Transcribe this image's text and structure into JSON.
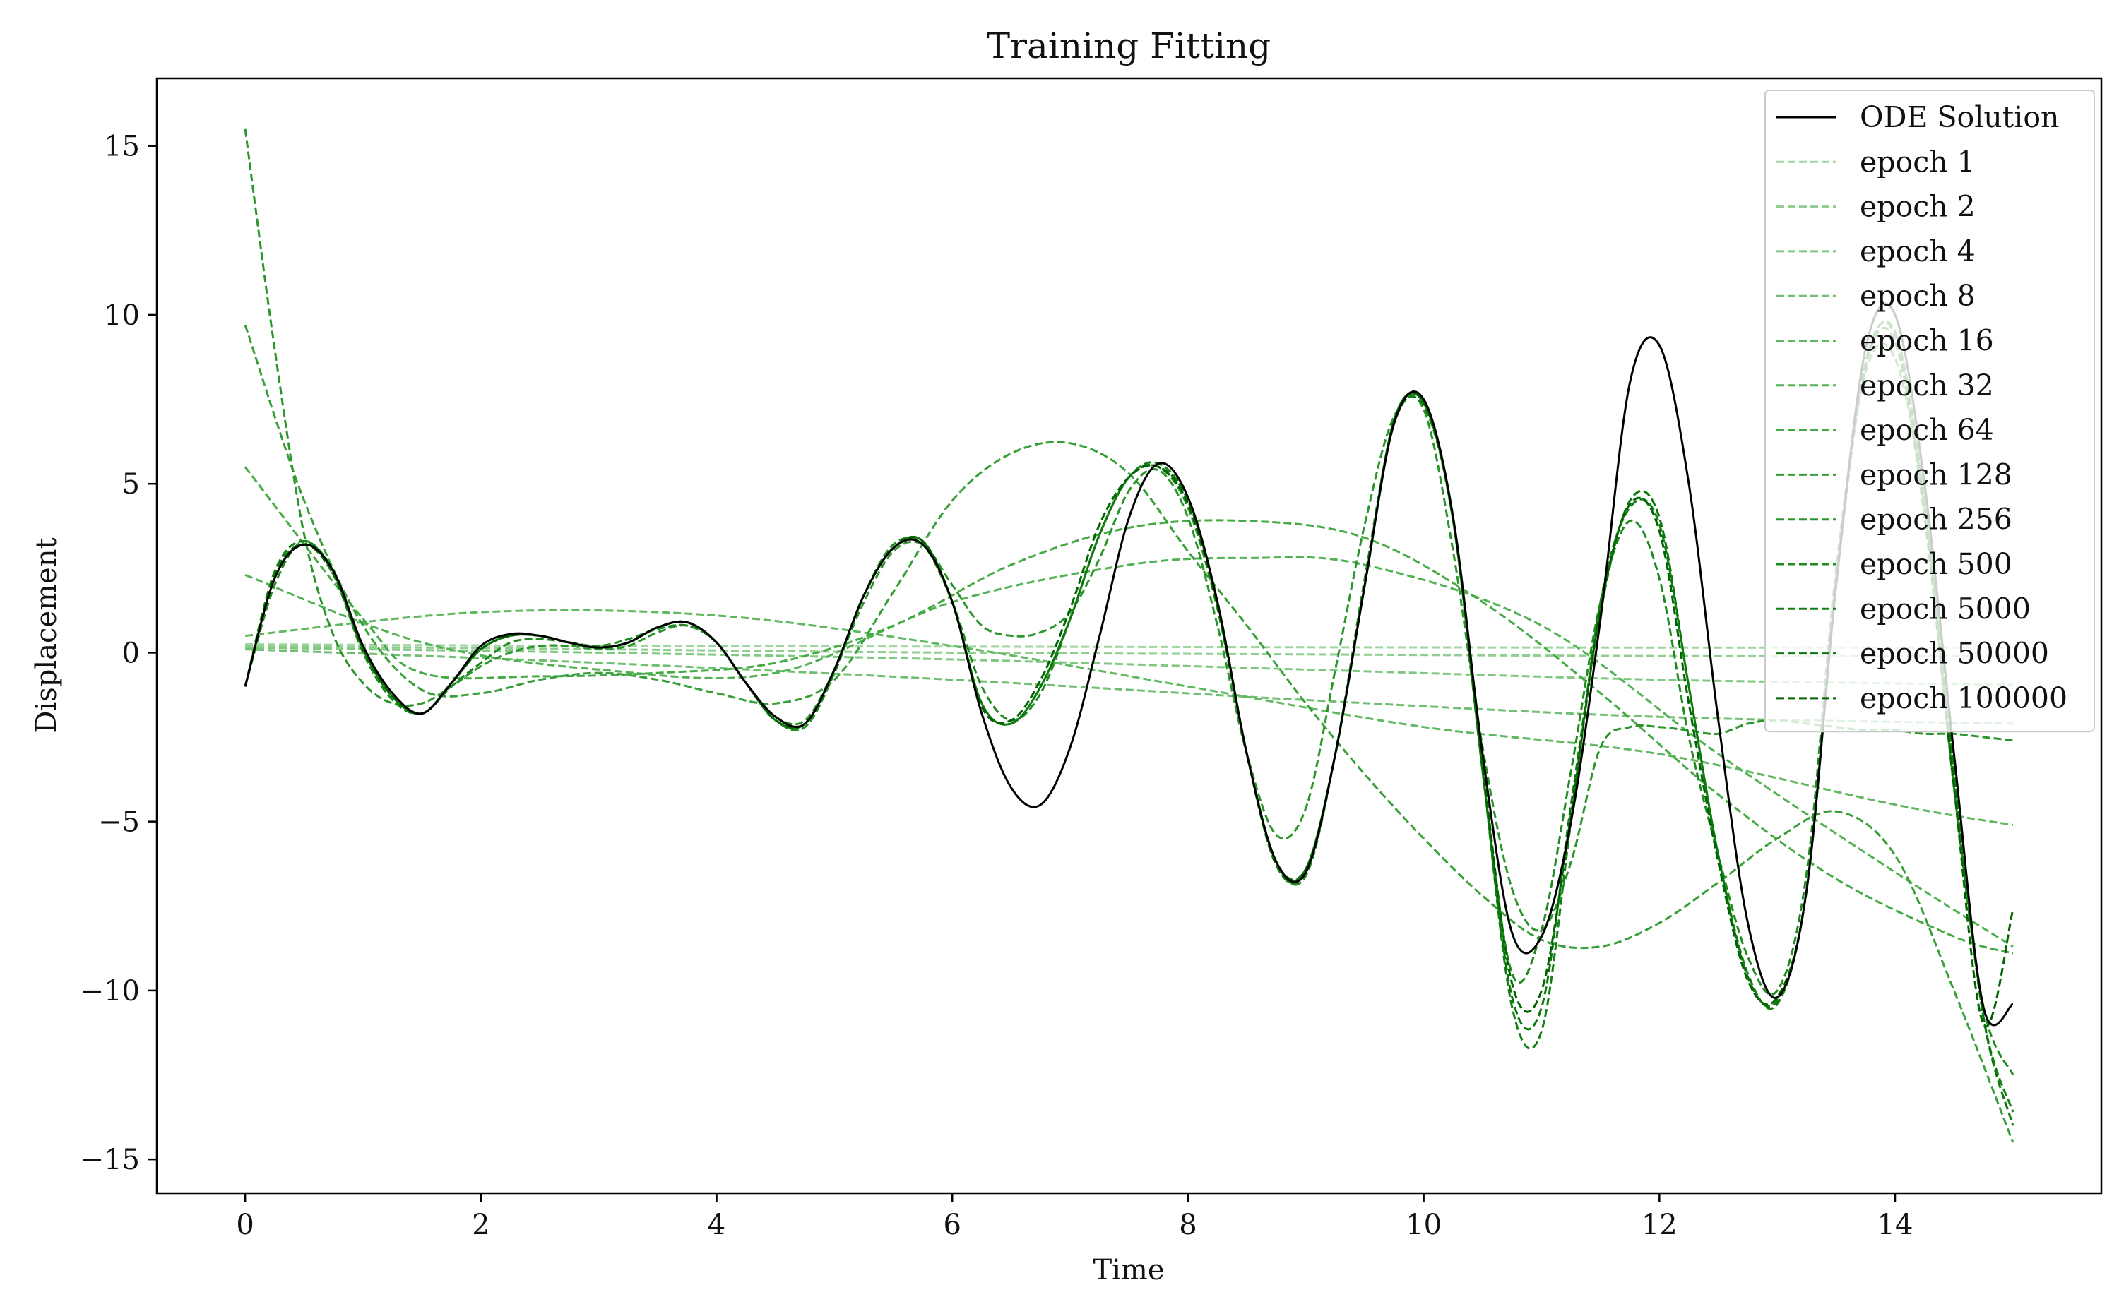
{
  "chart_data": {
    "type": "line",
    "title": "Training Fitting",
    "xlabel": "Time",
    "ylabel": "Displacement",
    "xlim": [
      -0.75,
      15.75
    ],
    "ylim": [
      -16,
      17
    ],
    "xticks": [
      0,
      2,
      4,
      6,
      8,
      10,
      12,
      14
    ],
    "xtick_labels": [
      "0",
      "2",
      "4",
      "6",
      "8",
      "10",
      "12",
      "14"
    ],
    "yticks": [
      -15,
      -10,
      -5,
      0,
      5,
      10,
      15
    ],
    "ytick_labels": [
      "−15",
      "−10",
      "−5",
      "0",
      "5",
      "10",
      "15"
    ],
    "grid": false,
    "legend_position": "top-right",
    "series": [
      {
        "name": "ODE Solution",
        "color": "#000000",
        "style": "solid",
        "x": [
          0,
          0.25,
          0.5,
          0.75,
          1,
          1.25,
          1.5,
          1.75,
          2,
          2.25,
          2.5,
          2.75,
          3,
          3.25,
          3.5,
          3.75,
          4,
          4.25,
          4.5,
          4.75,
          5,
          5.25,
          5.5,
          5.75,
          6,
          6.25,
          6.5,
          6.75,
          7,
          7.25,
          7.5,
          7.75,
          8,
          8.25,
          8.5,
          8.75,
          9,
          9.25,
          9.5,
          9.75,
          10,
          10.25,
          10.5,
          10.75,
          11,
          11.25,
          11.5,
          11.75,
          12,
          12.25,
          12.5,
          12.75,
          13,
          13.25,
          13.5,
          13.75,
          14,
          14.25,
          14.5,
          14.75,
          15
        ],
        "y": [
          -1.0,
          2.2,
          3.2,
          2.4,
          0.2,
          -1.2,
          -1.8,
          -0.9,
          0.2,
          0.55,
          0.5,
          0.3,
          0.15,
          0.3,
          0.75,
          0.9,
          0.3,
          -0.9,
          -1.9,
          -2.1,
          -0.5,
          1.7,
          3.1,
          3.2,
          1.5,
          -1.8,
          -4.0,
          -4.5,
          -2.8,
          0.5,
          4.0,
          5.6,
          4.6,
          1.5,
          -3.0,
          -6.2,
          -6.5,
          -3.0,
          2.0,
          6.8,
          7.5,
          4.0,
          -3.0,
          -8.3,
          -8.4,
          -5.0,
          1.0,
          8.0,
          9.1,
          5.0,
          -2.0,
          -8.0,
          -10.2,
          -7.0,
          2.0,
          9.0,
          10.0,
          5.0,
          -3.0,
          -10.5,
          -10.4
        ]
      },
      {
        "name": "epoch 1",
        "color": "#9fd59f",
        "style": "dashed",
        "x": [
          0,
          3,
          6,
          9,
          12,
          15
        ],
        "y": [
          0.25,
          0.2,
          0.18,
          0.16,
          0.15,
          0.15
        ]
      },
      {
        "name": "epoch 2",
        "color": "#8fce8f",
        "style": "dashed",
        "x": [
          0,
          3,
          6,
          9,
          12,
          15
        ],
        "y": [
          0.2,
          0.1,
          0.0,
          -0.05,
          -0.1,
          -0.1
        ]
      },
      {
        "name": "epoch 4",
        "color": "#80c780",
        "style": "dashed",
        "x": [
          0,
          3,
          6,
          9,
          12,
          15
        ],
        "y": [
          0.15,
          0.0,
          -0.2,
          -0.5,
          -0.8,
          -0.95
        ]
      },
      {
        "name": "epoch 8",
        "color": "#70bf70",
        "style": "dashed",
        "x": [
          0,
          3,
          6,
          9,
          12,
          15
        ],
        "y": [
          0.1,
          -0.3,
          -0.8,
          -1.4,
          -1.9,
          -2.1
        ]
      },
      {
        "name": "epoch 16",
        "color": "#60b860",
        "style": "dashed",
        "x": [
          0,
          2,
          4,
          6,
          8,
          10,
          12,
          14,
          15
        ],
        "y": [
          0.5,
          1.2,
          1.1,
          0.2,
          -1.0,
          -2.2,
          -3.0,
          -4.5,
          -5.1
        ]
      },
      {
        "name": "epoch 32",
        "color": "#52b152",
        "style": "dashed",
        "x": [
          0,
          1.5,
          3,
          4.5,
          6,
          7.5,
          8.5,
          9.5,
          11,
          12.5,
          14,
          15
        ],
        "y": [
          2.3,
          0.3,
          -0.5,
          -0.6,
          1.5,
          2.6,
          2.8,
          2.6,
          0.8,
          -3.0,
          -6.5,
          -8.7
        ]
      },
      {
        "name": "epoch 64",
        "color": "#44aa44",
        "style": "dashed",
        "x": [
          0,
          1,
          1.5,
          2.5,
          3.5,
          4.5,
          5.5,
          6.5,
          7.5,
          8.5,
          9.5,
          10.5,
          11.5,
          12.5,
          13.5,
          14.5,
          15
        ],
        "y": [
          5.5,
          1.0,
          -0.6,
          -0.7,
          -0.6,
          -0.3,
          0.8,
          2.6,
          3.7,
          3.9,
          3.4,
          1.5,
          -1.2,
          -4.2,
          -6.7,
          -8.4,
          -8.9
        ]
      },
      {
        "name": "epoch 128",
        "color": "#379f37",
        "style": "dashed",
        "x": [
          0,
          0.5,
          1,
          1.5,
          2,
          2.5,
          3,
          3.5,
          4,
          4.5,
          5,
          5.5,
          6,
          6.5,
          7,
          7.5,
          8,
          8.5,
          9,
          9.5,
          10,
          10.5,
          11,
          11.5,
          12,
          12.5,
          13,
          13.5,
          14,
          14.5,
          15
        ],
        "y": [
          9.7,
          4.5,
          0.8,
          -1.1,
          -1.2,
          -0.8,
          -0.6,
          -0.8,
          -1.2,
          -1.5,
          -0.8,
          1.8,
          4.5,
          5.9,
          6.2,
          5.3,
          3.0,
          0.8,
          -1.5,
          -3.6,
          -5.5,
          -7.2,
          -8.5,
          -8.7,
          -8.0,
          -6.8,
          -5.5,
          -4.7,
          -6.0,
          -10.0,
          -14.5
        ]
      },
      {
        "name": "epoch 256",
        "color": "#2a952a",
        "style": "dashed",
        "x": [
          0,
          0.25,
          0.5,
          0.75,
          1,
          1.25,
          1.5,
          1.75,
          2,
          2.25,
          2.5,
          2.75,
          3,
          3.25,
          3.5,
          3.75,
          4,
          4.25,
          4.5,
          4.75,
          5,
          5.25,
          5.5,
          5.75,
          6,
          6.25,
          6.5,
          6.75,
          7,
          7.25,
          7.5,
          7.75,
          8,
          8.25,
          8.5,
          8.75,
          9,
          9.25,
          9.5,
          9.75,
          10,
          10.25,
          10.5,
          10.75,
          11,
          11.25,
          11.5,
          11.75,
          12,
          12.25,
          12.5,
          12.75,
          13,
          13.25,
          13.5,
          13.75,
          14,
          14.25,
          14.5,
          14.75,
          15
        ],
        "y": [
          15.5,
          9.0,
          3.5,
          0.5,
          -0.9,
          -1.5,
          -1.5,
          -1.0,
          -0.4,
          0.0,
          0.2,
          0.2,
          0.1,
          0.2,
          0.6,
          0.8,
          0.3,
          -0.9,
          -1.9,
          -2.0,
          -0.5,
          1.5,
          3.0,
          3.2,
          2.0,
          0.8,
          0.5,
          0.6,
          1.2,
          2.8,
          4.8,
          5.4,
          4.0,
          0.8,
          -3.0,
          -5.4,
          -4.6,
          -0.5,
          3.8,
          7.0,
          7.2,
          3.0,
          -2.8,
          -7.0,
          -8.2,
          -6.2,
          -2.8,
          -2.2,
          -2.2,
          -2.3,
          -2.4,
          -2.1,
          -2.0,
          -2.1,
          -2.2,
          -2.3,
          -2.3,
          -2.4,
          -2.4,
          -2.5,
          -2.6
        ]
      },
      {
        "name": "epoch 500",
        "color": "#1f8b1f",
        "style": "dashed",
        "x": [
          0,
          0.25,
          0.5,
          0.75,
          1,
          1.25,
          1.5,
          1.75,
          2,
          2.25,
          2.5,
          2.75,
          3,
          3.25,
          3.5,
          3.75,
          4,
          4.25,
          4.5,
          4.75,
          5,
          5.25,
          5.5,
          5.75,
          6,
          6.25,
          6.5,
          6.75,
          7,
          7.25,
          7.5,
          7.75,
          8,
          8.25,
          8.5,
          8.75,
          9,
          9.25,
          9.5,
          9.75,
          10,
          10.25,
          10.5,
          10.75,
          11,
          11.25,
          11.5,
          11.75,
          12,
          12.25,
          12.5,
          12.75,
          13,
          13.25,
          13.5,
          13.75,
          14,
          14.25,
          14.5,
          14.75,
          15
        ],
        "y": [
          -1.0,
          2.0,
          3.3,
          2.3,
          0.0,
          -1.4,
          -1.8,
          -1.0,
          -0.3,
          0.3,
          0.4,
          0.3,
          0.2,
          0.4,
          0.7,
          0.8,
          0.3,
          -0.9,
          -2.0,
          -2.2,
          -0.6,
          1.7,
          3.2,
          3.2,
          1.5,
          -1.0,
          -2.0,
          -1.2,
          1.0,
          3.5,
          5.2,
          5.5,
          4.3,
          1.3,
          -3.0,
          -6.2,
          -6.6,
          -3.0,
          2.2,
          6.8,
          7.4,
          4.0,
          -3.5,
          -9.5,
          -8.2,
          -3.5,
          1.5,
          3.9,
          2.2,
          -2.5,
          -6.0,
          -9.0,
          -10.0,
          -6.5,
          2.5,
          8.3,
          8.7,
          4.3,
          -4.0,
          -10.5,
          -12.5
        ]
      },
      {
        "name": "epoch 5000",
        "color": "#138013",
        "style": "dashed",
        "x": [
          0,
          0.25,
          0.5,
          0.75,
          1,
          1.25,
          1.5,
          1.75,
          2,
          2.25,
          2.5,
          2.75,
          3,
          3.25,
          3.5,
          3.75,
          4,
          4.25,
          4.5,
          4.75,
          5,
          5.25,
          5.5,
          5.75,
          6,
          6.25,
          6.5,
          6.75,
          7,
          7.25,
          7.5,
          7.75,
          8,
          8.25,
          8.5,
          8.75,
          9,
          9.25,
          9.5,
          9.75,
          10,
          10.25,
          10.5,
          10.75,
          11,
          11.25,
          11.5,
          11.75,
          12,
          12.25,
          12.5,
          12.75,
          13,
          13.25,
          13.5,
          13.75,
          14,
          14.25,
          14.5,
          14.75,
          15
        ],
        "y": [
          -1.0,
          2.4,
          3.3,
          2.4,
          0.1,
          -1.3,
          -1.8,
          -0.9,
          0.1,
          0.5,
          0.5,
          0.3,
          0.15,
          0.3,
          0.75,
          0.9,
          0.3,
          -0.9,
          -2.0,
          -2.1,
          -0.5,
          1.7,
          3.1,
          3.3,
          1.5,
          -1.5,
          -2.1,
          -1.0,
          1.0,
          3.5,
          5.2,
          5.6,
          4.5,
          1.5,
          -3.0,
          -6.3,
          -6.5,
          -3.0,
          2.0,
          6.8,
          7.3,
          3.9,
          -3.5,
          -10.5,
          -11.2,
          -5.0,
          1.5,
          4.3,
          3.8,
          -1.0,
          -6.0,
          -9.5,
          -10.4,
          -7.0,
          2.0,
          8.5,
          9.5,
          4.5,
          -3.5,
          -10.8,
          -13.6
        ]
      },
      {
        "name": "epoch 50000",
        "color": "#097709",
        "style": "dashed",
        "x": [
          0,
          0.25,
          0.5,
          0.75,
          1,
          1.25,
          1.5,
          1.75,
          2,
          2.25,
          2.5,
          2.75,
          3,
          3.25,
          3.5,
          3.75,
          4,
          4.25,
          4.5,
          4.75,
          5,
          5.25,
          5.5,
          5.75,
          6,
          6.25,
          6.5,
          6.75,
          7,
          7.25,
          7.5,
          7.75,
          8,
          8.25,
          8.5,
          8.75,
          9,
          9.25,
          9.5,
          9.75,
          10,
          10.25,
          10.5,
          10.75,
          11,
          11.25,
          11.5,
          11.75,
          12,
          12.25,
          12.5,
          12.75,
          13,
          13.25,
          13.5,
          13.75,
          14,
          14.25,
          14.5,
          14.75,
          15
        ],
        "y": [
          -1.0,
          2.3,
          3.2,
          2.3,
          0.1,
          -1.3,
          -1.8,
          -0.9,
          0.1,
          0.5,
          0.5,
          0.3,
          0.15,
          0.3,
          0.75,
          0.9,
          0.3,
          -0.9,
          -2.0,
          -2.1,
          -0.5,
          1.7,
          3.1,
          3.3,
          1.5,
          -1.5,
          -2.1,
          -1.0,
          1.0,
          3.5,
          5.2,
          5.5,
          4.5,
          1.5,
          -3.0,
          -6.3,
          -6.4,
          -3.0,
          2.0,
          6.9,
          7.4,
          3.9,
          -3.5,
          -10.2,
          -10.5,
          -4.5,
          1.2,
          4.5,
          4.0,
          -1.0,
          -6.0,
          -9.6,
          -10.3,
          -7.0,
          2.0,
          8.6,
          9.4,
          4.5,
          -3.5,
          -10.8,
          -14.0
        ]
      },
      {
        "name": "epoch 100000",
        "color": "#006400",
        "style": "dashed",
        "x": [
          0,
          0.25,
          0.5,
          0.75,
          1,
          1.25,
          1.5,
          1.75,
          2,
          2.25,
          2.5,
          2.75,
          3,
          3.25,
          3.5,
          3.75,
          4,
          4.25,
          4.5,
          4.75,
          5,
          5.25,
          5.5,
          5.75,
          6,
          6.25,
          6.5,
          6.75,
          7,
          7.25,
          7.5,
          7.75,
          8,
          8.25,
          8.5,
          8.75,
          9,
          9.25,
          9.5,
          9.75,
          10,
          10.25,
          10.5,
          10.75,
          11,
          11.25,
          11.5,
          11.75,
          12,
          12.25,
          12.5,
          12.75,
          13,
          13.25,
          13.5,
          13.75,
          14,
          14.25,
          14.5,
          14.75,
          15
        ],
        "y": [
          -1.0,
          2.2,
          3.2,
          2.4,
          0.1,
          -1.3,
          -1.8,
          -0.9,
          0.1,
          0.5,
          0.5,
          0.3,
          0.15,
          0.3,
          0.75,
          0.9,
          0.3,
          -0.9,
          -2.0,
          -2.1,
          -0.5,
          1.7,
          3.1,
          3.3,
          1.5,
          -1.6,
          -2.0,
          -0.8,
          1.3,
          3.8,
          5.2,
          5.5,
          4.4,
          1.4,
          -3.0,
          -6.2,
          -6.4,
          -3.0,
          2.0,
          6.9,
          7.4,
          4.0,
          -3.3,
          -9.8,
          -10.0,
          -4.8,
          1.3,
          4.4,
          3.6,
          -1.5,
          -6.2,
          -9.7,
          -10.2,
          -7.0,
          2.2,
          8.5,
          9.2,
          4.0,
          -4.0,
          -11.0,
          -7.6
        ]
      }
    ]
  }
}
